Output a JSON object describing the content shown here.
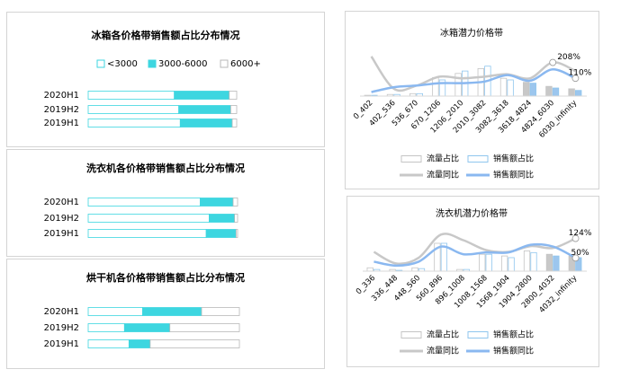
{
  "chart_data": [
    {
      "type": "bar",
      "horizontal": true,
      "stacked": true,
      "title": "冰箱各价格带销售额占比分布情况",
      "legend": "top",
      "categories": [
        "2020H1",
        "2019H2",
        "2019H1"
      ],
      "xlim": [
        0,
        100
      ],
      "series": [
        {
          "name": "<3000",
          "color": "#ffffff",
          "edgecolor": "#3dd6e0",
          "values": [
            58,
            61,
            62
          ]
        },
        {
          "name": "3000-6000",
          "color": "#3dd6e0",
          "edgecolor": "#3dd6e0",
          "values": [
            37,
            35,
            35
          ]
        },
        {
          "name": "6000+",
          "color": "#ffffff",
          "edgecolor": "#b8b8b8",
          "values": [
            5,
            4,
            3
          ]
        }
      ]
    },
    {
      "type": "bar",
      "horizontal": true,
      "stacked": true,
      "title": "洗衣机各价格带销售额占比分布情况",
      "categories": [
        "2020H1",
        "2019H2",
        "2019H1"
      ],
      "xlim": [
        0,
        100
      ],
      "series": [
        {
          "color": "#ffffff",
          "edgecolor": "#3dd6e0",
          "values": [
            75,
            81,
            79
          ]
        },
        {
          "color": "#3dd6e0",
          "edgecolor": "#3dd6e0",
          "values": [
            22,
            17,
            20
          ]
        },
        {
          "color": "#ffffff",
          "edgecolor": "#b8b8b8",
          "values": [
            3,
            2,
            1
          ]
        }
      ]
    },
    {
      "type": "bar",
      "horizontal": true,
      "stacked": true,
      "title": "烘干机各价格带销售额占比分布情况",
      "categories": [
        "2020H1",
        "2019H2",
        "2019H1"
      ],
      "xlim": [
        0,
        100
      ],
      "series": [
        {
          "color": "#ffffff",
          "edgecolor": "#3dd6e0",
          "values": [
            36,
            24,
            27
          ]
        },
        {
          "color": "#3dd6e0",
          "edgecolor": "#3dd6e0",
          "values": [
            39,
            30,
            14
          ]
        },
        {
          "color": "#ffffff",
          "edgecolor": "#b8b8b8",
          "values": [
            25,
            46,
            59
          ]
        }
      ]
    },
    {
      "type": "combo",
      "title": "冰箱潜力价格带",
      "legend": "bottom",
      "categories": [
        "0_402",
        "402_536",
        "536_670",
        "670_1206",
        "1206_2010",
        "2010_3082",
        "3082_3618",
        "3618_4824",
        "4824_6030",
        "6030_infinity"
      ],
      "ylim": [
        0,
        25
      ],
      "y2lim": [
        0,
        250
      ],
      "series": [
        {
          "name": "流量占比",
          "kind": "bar",
          "color": "#ffffff",
          "edgecolor": "#c4c4c4",
          "colors": [
            "#ffffff",
            "#ffffff",
            "#ffffff",
            "#ffffff",
            "#ffffff",
            "#ffffff",
            "#ffffff",
            "#c8c8c8",
            "#c8c8c8",
            "#c8c8c8"
          ],
          "values": [
            0.5,
            1,
            1.5,
            11.5,
            14,
            17,
            11,
            8.5,
            6,
            4.5
          ]
        },
        {
          "name": "销售额占比",
          "kind": "bar",
          "color": "#ffffff",
          "edgecolor": "#8fc6ee",
          "colors": [
            "#ffffff",
            "#ffffff",
            "#ffffff",
            "#ffffff",
            "#ffffff",
            "#ffffff",
            "#ffffff",
            "#9cc6ee",
            "#9cc6ee",
            "#9cc6ee"
          ],
          "values": [
            0.5,
            1,
            1.5,
            10,
            15.5,
            18.5,
            10,
            8,
            5,
            3.5
          ]
        },
        {
          "name": "流量同比",
          "kind": "line",
          "axis": "y2",
          "color": "#c8c8c8",
          "values": [
            245,
            45,
            65,
            120,
            110,
            120,
            135,
            110,
            208,
            155
          ],
          "value_labels": [
            null,
            null,
            null,
            null,
            null,
            null,
            null,
            null,
            "208%",
            null
          ]
        },
        {
          "name": "销售额同比",
          "kind": "line",
          "axis": "y2",
          "color": "#8ab8f0",
          "values": [
            25,
            55,
            65,
            80,
            80,
            90,
            130,
            95,
            165,
            110
          ],
          "value_labels": [
            null,
            null,
            null,
            null,
            null,
            null,
            null,
            null,
            null,
            "110%"
          ]
        }
      ]
    },
    {
      "type": "combo",
      "title": "洗衣机潜力价格带",
      "legend": "bottom",
      "categories": [
        "0_336",
        "336_448",
        "448_560",
        "560_896",
        "896_1008",
        "1008_1568",
        "1568_1904",
        "1904_2800",
        "2800_4032",
        "4032_infinity"
      ],
      "ylim": [
        0,
        25
      ],
      "y2lim": [
        0,
        160
      ],
      "series": [
        {
          "name": "流量占比",
          "kind": "bar",
          "color": "#ffffff",
          "edgecolor": "#c4c4c4",
          "colors": [
            "#ffffff",
            "#ffffff",
            "#ffffff",
            "#ffffff",
            "#ffffff",
            "#ffffff",
            "#ffffff",
            "#ffffff",
            "#c8c8c8",
            "#c8c8c8"
          ],
          "values": [
            2,
            1,
            2,
            16.5,
            1,
            10,
            9,
            12,
            10,
            9
          ]
        },
        {
          "name": "销售额占比",
          "kind": "bar",
          "color": "#ffffff",
          "edgecolor": "#8fc6ee",
          "colors": [
            "#ffffff",
            "#ffffff",
            "#ffffff",
            "#ffffff",
            "#ffffff",
            "#ffffff",
            "#ffffff",
            "#ffffff",
            "#9cc6ee",
            "#9cc6ee"
          ],
          "values": [
            1,
            0.5,
            1.5,
            16.5,
            1,
            10,
            8,
            11,
            9,
            8
          ]
        },
        {
          "name": "流量同比",
          "kind": "line",
          "axis": "y2",
          "color": "#c8c8c8",
          "values": [
            73,
            29,
            51,
            139,
            117,
            80,
            73,
            95,
            88,
            124
          ],
          "value_labels": [
            null,
            null,
            null,
            null,
            null,
            null,
            null,
            null,
            null,
            "124%"
          ]
        },
        {
          "name": "销售额同比",
          "kind": "line",
          "axis": "y2",
          "color": "#8ab8f0",
          "values": [
            36,
            21,
            36,
            93,
            64,
            71,
            71,
            100,
            93,
            50
          ],
          "value_labels": [
            null,
            null,
            null,
            null,
            null,
            null,
            null,
            null,
            null,
            "50%"
          ]
        }
      ]
    }
  ]
}
